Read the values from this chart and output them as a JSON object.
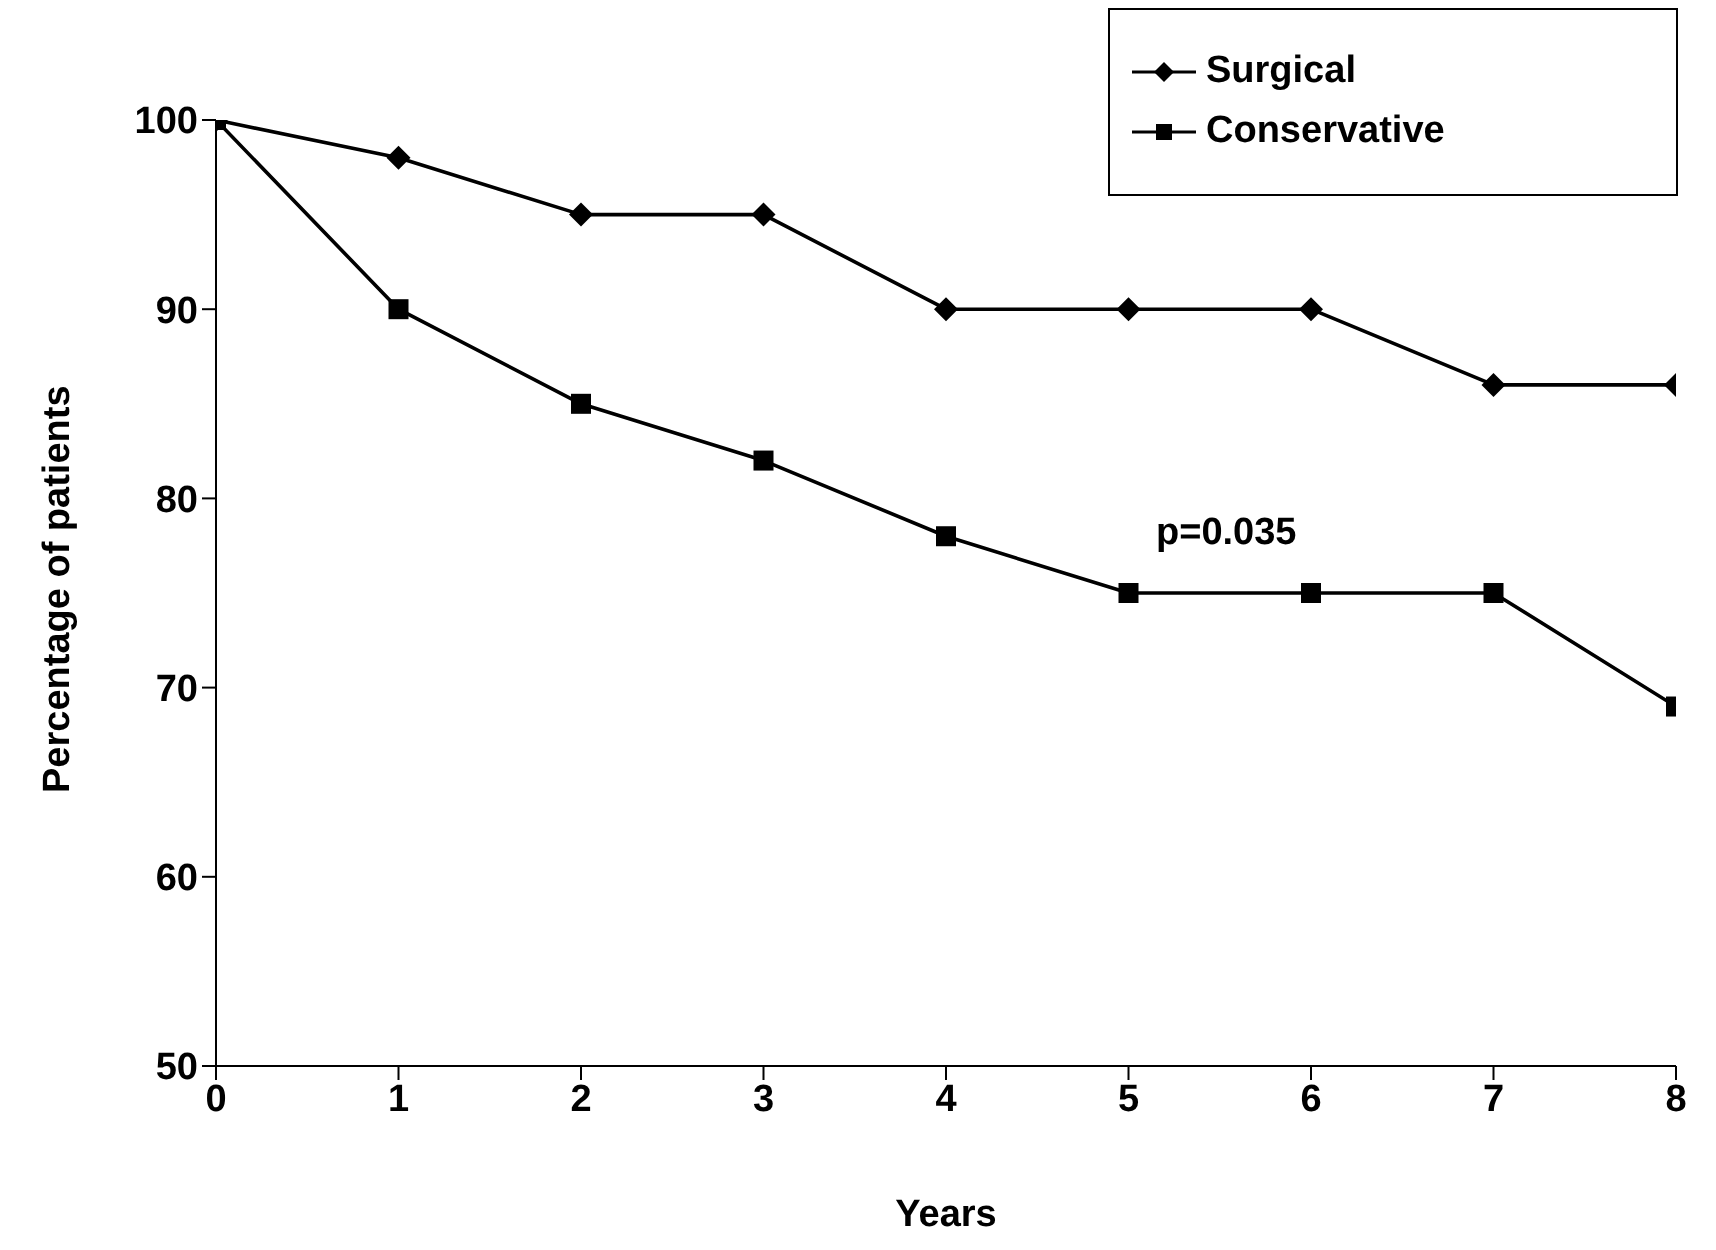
{
  "chart_data": {
    "type": "line",
    "xlabel": "Years",
    "ylabel": "Percentage of patients",
    "x": [
      0,
      1,
      2,
      3,
      4,
      5,
      6,
      7,
      8
    ],
    "series": [
      {
        "name": "Surgical",
        "color": "#000000",
        "marker": "diamond",
        "values": [
          100,
          98,
          95,
          95,
          90,
          90,
          90,
          86,
          86
        ]
      },
      {
        "name": "Conservative",
        "color": "#000000",
        "marker": "square",
        "values": [
          100,
          90,
          85,
          82,
          78,
          75,
          75,
          75,
          69
        ]
      }
    ],
    "xlim": [
      0,
      8
    ],
    "xticks": [
      0,
      1,
      2,
      3,
      4,
      5,
      6,
      7,
      8
    ],
    "ylim": [
      50,
      100
    ],
    "yticks": [
      50,
      60,
      70,
      80,
      90,
      100
    ],
    "grid": false,
    "legend": "top right",
    "annotations": [
      "p=0.035"
    ]
  }
}
